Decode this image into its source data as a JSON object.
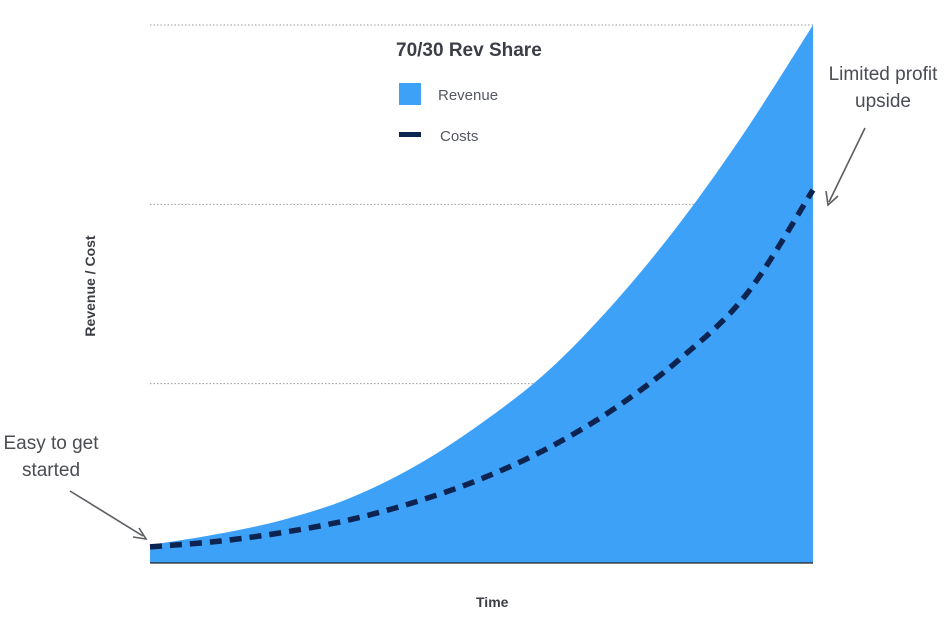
{
  "chart_data": {
    "type": "area",
    "title": "70/30 Rev Share",
    "xlabel": "Time",
    "ylabel": "Revenue / Cost",
    "xlim": [
      0,
      1
    ],
    "ylim": [
      0,
      3
    ],
    "grid": true,
    "legend_position": "top-center",
    "x": [
      0,
      0.1,
      0.2,
      0.3,
      0.4,
      0.5,
      0.6,
      0.7,
      0.8,
      0.9,
      1.0
    ],
    "series": [
      {
        "name": "Revenue",
        "style": "area",
        "color": "#3ea1f8",
        "values": [
          0.1,
          0.16,
          0.24,
          0.36,
          0.54,
          0.78,
          1.07,
          1.45,
          1.9,
          2.42,
          3.0
        ]
      },
      {
        "name": "Costs",
        "style": "dashed-line",
        "color": "#0d2350",
        "values": [
          0.09,
          0.12,
          0.17,
          0.24,
          0.34,
          0.47,
          0.64,
          0.86,
          1.14,
          1.5,
          2.08
        ]
      }
    ],
    "annotations": [
      {
        "id": "start",
        "lines": [
          "Easy to get",
          "started"
        ],
        "points_to_x": 0
      },
      {
        "id": "end",
        "lines": [
          "Limited profit",
          "upside"
        ],
        "points_to_x": 1
      }
    ]
  }
}
